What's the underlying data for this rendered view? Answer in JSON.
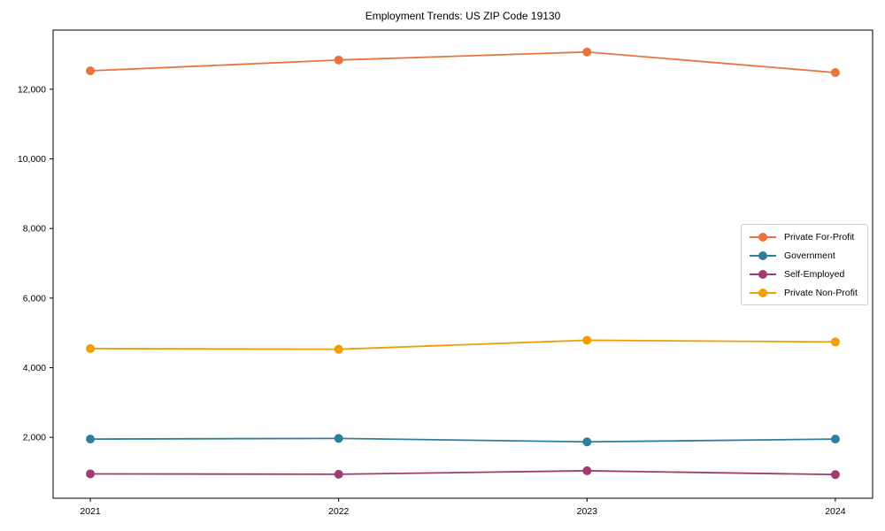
{
  "window": {
    "title": "Employment Trends: US ZIP Code 19130"
  },
  "chart_data": {
    "type": "line",
    "title": "Employment Trends: US ZIP Code 19130",
    "categories": [
      "2021",
      "2022",
      "2023",
      "2024"
    ],
    "series": [
      {
        "name": "Private For-Profit",
        "color": "#E8743B",
        "values": [
          12530,
          12840,
          13070,
          12480
        ]
      },
      {
        "name": "Government",
        "color": "#2E7E9E",
        "values": [
          1950,
          1970,
          1870,
          1950
        ]
      },
      {
        "name": "Self-Employed",
        "color": "#A23B72",
        "values": [
          950,
          940,
          1040,
          930
        ]
      },
      {
        "name": "Private Non-Profit",
        "color": "#F09E00",
        "values": [
          4550,
          4530,
          4790,
          4740
        ]
      }
    ],
    "xlabel": "",
    "ylabel": "",
    "yticks": [
      2000,
      4000,
      6000,
      8000,
      10000,
      12000
    ],
    "ylim": [
      250,
      13700
    ],
    "grid": false,
    "marker": "circle",
    "legend_position": "center right"
  }
}
